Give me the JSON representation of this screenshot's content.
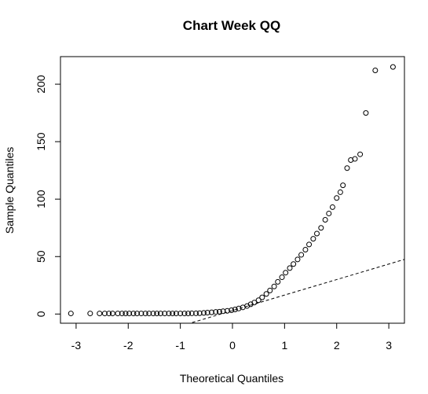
{
  "chart_data": {
    "type": "scatter",
    "title": "Chart Week QQ",
    "xlabel": "Theoretical Quantiles",
    "ylabel": "Sample Quantiles",
    "xlim": [
      -3.3,
      3.3
    ],
    "ylim": [
      -8,
      224
    ],
    "x_ticks": [
      -3,
      -2,
      -1,
      0,
      1,
      2,
      3
    ],
    "y_ticks": [
      0,
      50,
      100,
      150,
      200
    ],
    "grid": false,
    "series": [
      {
        "points": [
          [
            -3.1,
            0.5
          ],
          [
            -2.73,
            0.5
          ],
          [
            -2.55,
            0.5
          ],
          [
            -2.45,
            0.5
          ],
          [
            -2.37,
            0.5
          ],
          [
            -2.3,
            0.5
          ],
          [
            -2.2,
            0.5
          ],
          [
            -2.12,
            0.5
          ],
          [
            -2.05,
            0.5
          ],
          [
            -1.98,
            0.5
          ],
          [
            -1.9,
            0.5
          ],
          [
            -1.83,
            0.5
          ],
          [
            -1.75,
            0.5
          ],
          [
            -1.67,
            0.5
          ],
          [
            -1.6,
            0.5
          ],
          [
            -1.52,
            0.5
          ],
          [
            -1.45,
            0.5
          ],
          [
            -1.38,
            0.5
          ],
          [
            -1.3,
            0.5
          ],
          [
            -1.22,
            0.5
          ],
          [
            -1.15,
            0.5
          ],
          [
            -1.08,
            0.5
          ],
          [
            -1.0,
            0.5
          ],
          [
            -0.92,
            0.5
          ],
          [
            -0.85,
            0.5
          ],
          [
            -0.78,
            0.6
          ],
          [
            -0.7,
            0.6
          ],
          [
            -0.63,
            0.7
          ],
          [
            -0.55,
            1.0
          ],
          [
            -0.48,
            1.2
          ],
          [
            -0.4,
            1.5
          ],
          [
            -0.32,
            1.8
          ],
          [
            -0.25,
            2.0
          ],
          [
            -0.18,
            2.4
          ],
          [
            -0.1,
            2.8
          ],
          [
            -0.02,
            3.3
          ],
          [
            0.05,
            4.0
          ],
          [
            0.12,
            4.8
          ],
          [
            0.2,
            5.8
          ],
          [
            0.28,
            7.0
          ],
          [
            0.35,
            8.5
          ],
          [
            0.42,
            10.0
          ],
          [
            0.5,
            12.0
          ],
          [
            0.57,
            14.5
          ],
          [
            0.65,
            17.5
          ],
          [
            0.72,
            20.5
          ],
          [
            0.8,
            24.0
          ],
          [
            0.87,
            28.0
          ],
          [
            0.95,
            32.0
          ],
          [
            1.02,
            36.0
          ],
          [
            1.1,
            40.0
          ],
          [
            1.17,
            43.5
          ],
          [
            1.25,
            47.5
          ],
          [
            1.32,
            51.5
          ],
          [
            1.4,
            56.0
          ],
          [
            1.47,
            60.5
          ],
          [
            1.55,
            65.5
          ],
          [
            1.62,
            70.0
          ],
          [
            1.7,
            75.0
          ],
          [
            1.78,
            82.0
          ],
          [
            1.85,
            87.5
          ],
          [
            1.92,
            93.0
          ],
          [
            2.0,
            101.0
          ],
          [
            2.07,
            106.0
          ],
          [
            2.12,
            112.0
          ],
          [
            2.2,
            127.0
          ],
          [
            2.27,
            134.0
          ],
          [
            2.35,
            135.0
          ],
          [
            2.45,
            139.0
          ],
          [
            2.56,
            175.0
          ],
          [
            2.74,
            212.0
          ],
          [
            3.08,
            215.0
          ]
        ]
      }
    ],
    "reference_line": {
      "style": "dashed",
      "intercept": 3,
      "slope": 13.5
    }
  }
}
